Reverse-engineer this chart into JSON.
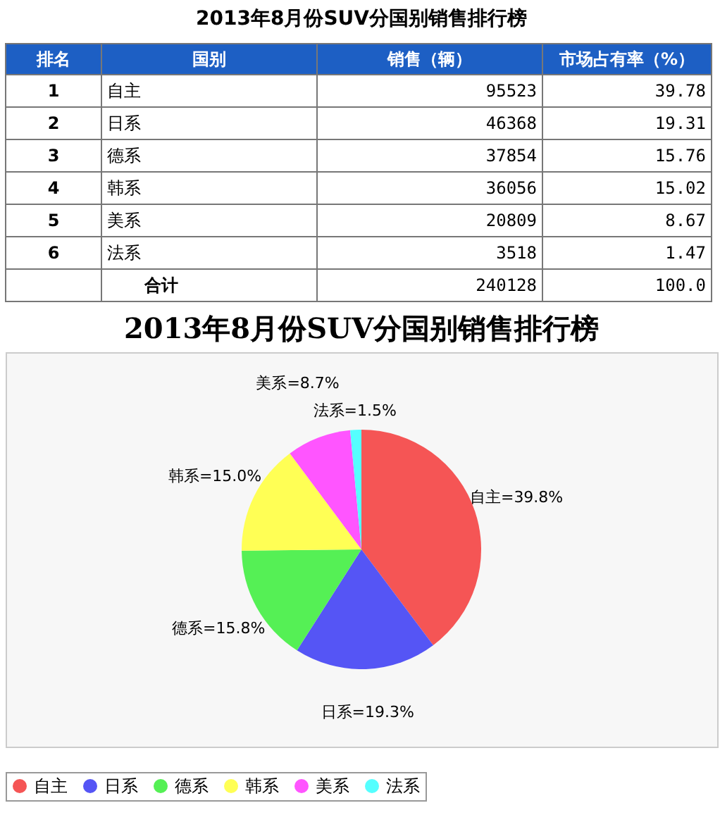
{
  "chart_data": [
    {
      "type": "other",
      "title": "2013年8月份SUV分国别销售排行榜",
      "xlabel": "国别",
      "categories": [
        "自主",
        "日系",
        "德系",
        "韩系",
        "美系",
        "法系"
      ],
      "series": [
        {
          "name": "排名",
          "values": [
            1,
            2,
            3,
            4,
            5,
            6
          ]
        },
        {
          "name": "销售（辆）",
          "values": [
            95523,
            46368,
            37854,
            36056,
            20809,
            3518
          ]
        },
        {
          "name": "市场占有率（%）",
          "values": [
            39.78,
            19.31,
            15.76,
            15.02,
            8.67,
            1.47
          ]
        }
      ],
      "data_labels": true,
      "annotations": [
        "合计",
        "240128",
        "100.0"
      ]
    },
    {
      "type": "pie",
      "title": "2013年8月份SUV分国别销售排行榜",
      "categories": [
        "自主",
        "日系",
        "德系",
        "韩系",
        "美系",
        "法系"
      ],
      "values": [
        39.8,
        19.3,
        15.8,
        15.0,
        8.7,
        1.5
      ],
      "colors": [
        "#f55555",
        "#5555f5",
        "#55f055",
        "#ffff55",
        "#ff55ff",
        "#55ffff"
      ],
      "value_labels": [
        "自主=39.8%",
        "日系=19.3%",
        "德系=15.8%",
        "韩系=15.0%",
        "美系=8.7%",
        "法系=1.5%"
      ],
      "legend": "bottom"
    }
  ]
}
